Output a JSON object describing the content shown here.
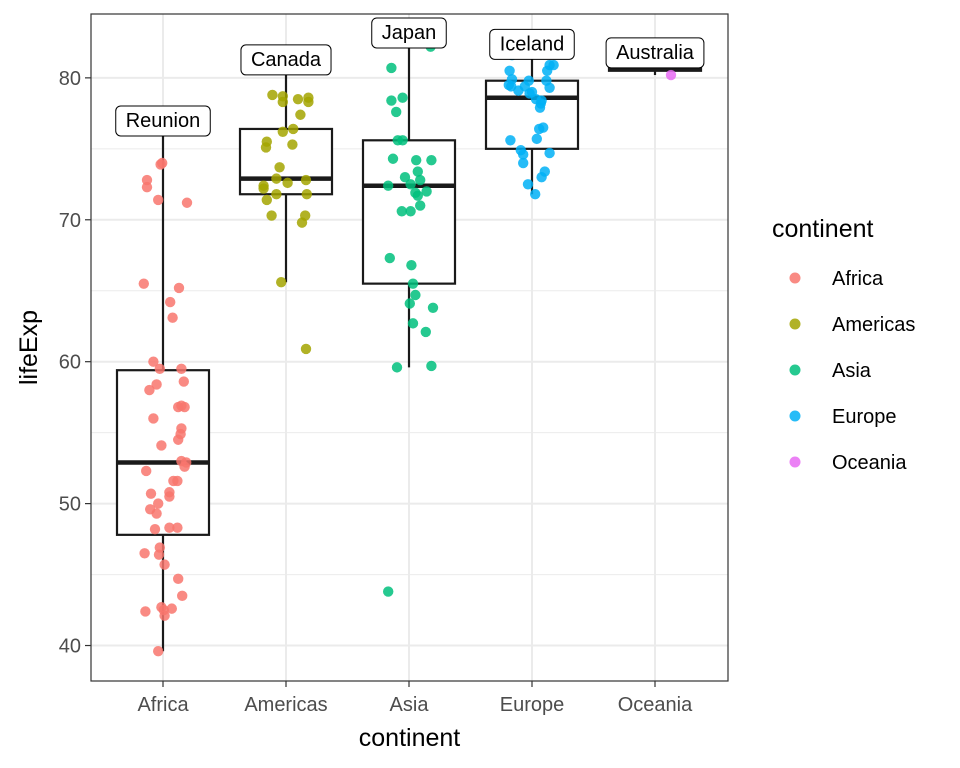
{
  "chart_data": {
    "type": "boxplot",
    "title": "",
    "xlabel": "continent",
    "ylabel": "lifeExp",
    "ylim": [
      37.5,
      84.5
    ],
    "y_ticks": [
      40,
      50,
      60,
      70,
      80
    ],
    "y_minor_ticks": [
      45,
      55,
      65,
      75
    ],
    "grid": true,
    "legend": {
      "title": "continent",
      "position": "right"
    },
    "categories": [
      "Africa",
      "Americas",
      "Asia",
      "Europe",
      "Oceania"
    ],
    "colors": {
      "Africa": "#F8766D",
      "Americas": "#A3A500",
      "Asia": "#00BF7D",
      "Europe": "#00B0F6",
      "Oceania": "#E76BF3"
    },
    "boxes": [
      {
        "category": "Africa",
        "min": 39.6,
        "q1": 47.8,
        "median": 52.9,
        "q3": 59.4,
        "max": 76.4
      },
      {
        "category": "Americas",
        "min": 65.6,
        "q1": 71.8,
        "median": 72.9,
        "q3": 76.4,
        "max": 80.7
      },
      {
        "category": "Asia",
        "min": 59.6,
        "q1": 65.5,
        "median": 72.4,
        "q3": 75.6,
        "max": 82.6
      },
      {
        "category": "Europe",
        "min": 71.8,
        "q1": 75.0,
        "median": 78.6,
        "q3": 79.8,
        "max": 81.8
      },
      {
        "category": "Oceania",
        "min": 80.2,
        "q1": 80.5,
        "median": 80.7,
        "q3": 81.0,
        "max": 81.2
      }
    ],
    "outliers": [
      {
        "category": "Americas",
        "y": 60.9
      },
      {
        "category": "Asia",
        "y": 43.8
      }
    ],
    "annotations": [
      {
        "category": "Africa",
        "label": "Reunion",
        "y": 76.4
      },
      {
        "category": "Americas",
        "label": "Canada",
        "y": 80.7
      },
      {
        "category": "Asia",
        "label": "Japan",
        "y": 82.6
      },
      {
        "category": "Europe",
        "label": "Iceland",
        "y": 81.8
      },
      {
        "category": "Oceania",
        "label": "Australia",
        "y": 81.2
      }
    ],
    "points": {
      "Africa": [
        [
          -0.2,
          72.8
        ],
        [
          -0.2,
          72.3
        ],
        [
          -0.03,
          73.9
        ],
        [
          -0.01,
          74.0
        ],
        [
          0.08,
          76.4
        ],
        [
          -0.06,
          71.4
        ],
        [
          0.3,
          71.2
        ],
        [
          -0.24,
          65.5
        ],
        [
          0.2,
          65.2
        ],
        [
          0.09,
          64.2
        ],
        [
          0.12,
          63.1
        ],
        [
          -0.12,
          60.0
        ],
        [
          0.23,
          59.5
        ],
        [
          -0.04,
          59.5
        ],
        [
          0.26,
          58.6
        ],
        [
          -0.08,
          58.4
        ],
        [
          -0.17,
          58.0
        ],
        [
          0.19,
          56.8
        ],
        [
          0.27,
          56.8
        ],
        [
          0.23,
          56.9
        ],
        [
          -0.12,
          56.0
        ],
        [
          0.23,
          55.3
        ],
        [
          0.22,
          54.9
        ],
        [
          0.19,
          54.5
        ],
        [
          -0.02,
          54.1
        ],
        [
          0.23,
          53.0
        ],
        [
          0.29,
          52.9
        ],
        [
          0.27,
          52.6
        ],
        [
          -0.21,
          52.3
        ],
        [
          0.13,
          51.6
        ],
        [
          0.18,
          51.6
        ],
        [
          0.08,
          50.8
        ],
        [
          0.08,
          50.5
        ],
        [
          -0.15,
          50.7
        ],
        [
          -0.06,
          50.0
        ],
        [
          -0.16,
          49.6
        ],
        [
          -0.08,
          49.3
        ],
        [
          -0.1,
          48.2
        ],
        [
          0.08,
          48.3
        ],
        [
          0.18,
          48.3
        ],
        [
          -0.23,
          46.5
        ],
        [
          -0.04,
          46.9
        ],
        [
          -0.05,
          46.4
        ],
        [
          0.02,
          45.7
        ],
        [
          0.19,
          44.7
        ],
        [
          0.24,
          43.5
        ],
        [
          -0.02,
          42.7
        ],
        [
          0.01,
          42.5
        ],
        [
          -0.22,
          42.4
        ],
        [
          0.11,
          42.6
        ],
        [
          0.02,
          42.1
        ],
        [
          -0.06,
          39.6
        ]
      ],
      "Americas": [
        [
          -0.17,
          78.8
        ],
        [
          -0.04,
          78.7
        ],
        [
          0.15,
          78.5
        ],
        [
          0.28,
          78.6
        ],
        [
          -0.04,
          78.3
        ],
        [
          0.28,
          78.3
        ],
        [
          0.15,
          80.7
        ],
        [
          -0.24,
          75.5
        ],
        [
          -0.25,
          75.1
        ],
        [
          0.08,
          75.3
        ],
        [
          0.09,
          76.4
        ],
        [
          -0.04,
          76.2
        ],
        [
          0.18,
          77.4
        ],
        [
          -0.08,
          73.7
        ],
        [
          0.02,
          72.6
        ],
        [
          0.25,
          72.8
        ],
        [
          -0.12,
          72.9
        ],
        [
          -0.28,
          72.4
        ],
        [
          -0.28,
          72.2
        ],
        [
          -0.24,
          71.4
        ],
        [
          -0.12,
          71.8
        ],
        [
          0.26,
          71.8
        ],
        [
          -0.18,
          70.3
        ],
        [
          0.24,
          70.3
        ],
        [
          0.2,
          69.8
        ],
        [
          -0.06,
          65.6
        ],
        [
          0.25,
          60.9
        ]
      ],
      "Asia": [
        [
          -0.27,
          82.6
        ],
        [
          0.27,
          82.2
        ],
        [
          -0.22,
          80.7
        ],
        [
          -0.22,
          78.4
        ],
        [
          -0.08,
          78.6
        ],
        [
          -0.16,
          77.6
        ],
        [
          -0.14,
          75.6
        ],
        [
          -0.08,
          75.6
        ],
        [
          0.28,
          74.2
        ],
        [
          0.09,
          74.2
        ],
        [
          -0.2,
          74.3
        ],
        [
          -0.05,
          73.0
        ],
        [
          0.11,
          73.4
        ],
        [
          0.14,
          72.8
        ],
        [
          0.02,
          72.5
        ],
        [
          -0.26,
          72.4
        ],
        [
          0.22,
          72.0
        ],
        [
          0.08,
          71.9
        ],
        [
          0.11,
          71.7
        ],
        [
          0.14,
          71.0
        ],
        [
          -0.09,
          70.6
        ],
        [
          0.02,
          70.6
        ],
        [
          -0.24,
          67.3
        ],
        [
          0.03,
          66.8
        ],
        [
          0.05,
          65.5
        ],
        [
          0.08,
          64.7
        ],
        [
          0.01,
          64.1
        ],
        [
          0.3,
          63.8
        ],
        [
          0.05,
          62.7
        ],
        [
          0.21,
          62.1
        ],
        [
          -0.15,
          59.6
        ],
        [
          0.28,
          59.7
        ],
        [
          -0.26,
          43.8
        ]
      ],
      "Europe": [
        [
          -0.26,
          81.8
        ],
        [
          -0.25,
          81.6
        ],
        [
          0.22,
          80.9
        ],
        [
          0.27,
          80.9
        ],
        [
          0.19,
          80.5
        ],
        [
          -0.28,
          80.5
        ],
        [
          -0.25,
          79.9
        ],
        [
          -0.04,
          79.8
        ],
        [
          0.18,
          79.8
        ],
        [
          -0.09,
          79.4
        ],
        [
          -0.29,
          79.5
        ],
        [
          -0.26,
          79.4
        ],
        [
          0.22,
          79.3
        ],
        [
          -0.17,
          79.1
        ],
        [
          0.0,
          79.0
        ],
        [
          0.05,
          78.5
        ],
        [
          -0.03,
          78.9
        ],
        [
          0.12,
          78.4
        ],
        [
          0.11,
          78.2
        ],
        [
          0.1,
          77.9
        ],
        [
          0.14,
          76.5
        ],
        [
          0.09,
          76.4
        ],
        [
          0.06,
          75.7
        ],
        [
          -0.27,
          75.6
        ],
        [
          -0.14,
          74.9
        ],
        [
          -0.11,
          74.6
        ],
        [
          -0.11,
          74.0
        ],
        [
          0.22,
          74.7
        ],
        [
          0.16,
          73.4
        ],
        [
          0.12,
          73.0
        ],
        [
          -0.05,
          72.5
        ],
        [
          0.04,
          71.8
        ]
      ],
      "Oceania": [
        [
          -0.24,
          81.2
        ],
        [
          0.2,
          80.2
        ]
      ]
    }
  }
}
